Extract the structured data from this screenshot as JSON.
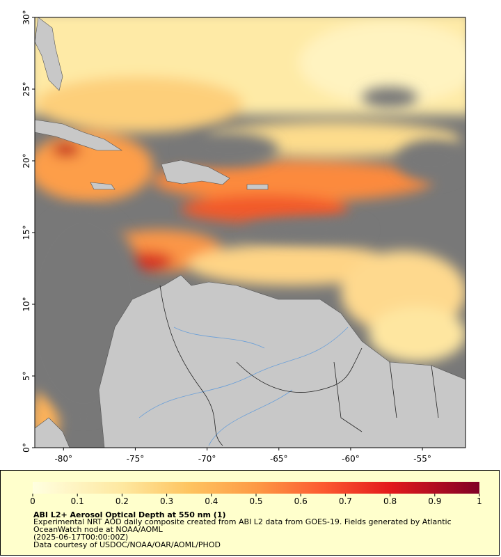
{
  "map": {
    "type": "map",
    "xlim": [
      -82,
      -52
    ],
    "ylim": [
      0,
      30
    ],
    "xticks": [
      {
        "value": -80,
        "label": "-80°"
      },
      {
        "value": -75,
        "label": "-75°"
      },
      {
        "value": -70,
        "label": "-70°"
      },
      {
        "value": -65,
        "label": "-65°"
      },
      {
        "value": -60,
        "label": "-60°"
      },
      {
        "value": -55,
        "label": "-55°"
      }
    ],
    "yticks": [
      {
        "value": 0,
        "label": "0°"
      },
      {
        "value": 5,
        "label": "5°"
      },
      {
        "value": 10,
        "label": "10°"
      },
      {
        "value": 15,
        "label": "15°"
      },
      {
        "value": 20,
        "label": "20°"
      },
      {
        "value": 25,
        "label": "25°"
      },
      {
        "value": 30,
        "label": "30°"
      }
    ]
  },
  "colorbar": {
    "range": [
      0,
      1
    ],
    "ticks": [
      0,
      0.1,
      0.2,
      0.3,
      0.4,
      0.5,
      0.6,
      0.7,
      0.8,
      0.9,
      1
    ]
  },
  "caption": {
    "title": "ABI L2+ Aerosol Optical Depth at 550 nm (1)",
    "lines": [
      "Experimental NRT AOD daily composite created from ABI L2 data from GOES-19. Fields generated by Atlantic",
      "OceanWatch node at NOAA/AOML",
      "(2025-06-17T00:00:00Z)",
      "Data courtesy of USDOC/NOAA/OAR/AOML/PHOD"
    ]
  }
}
